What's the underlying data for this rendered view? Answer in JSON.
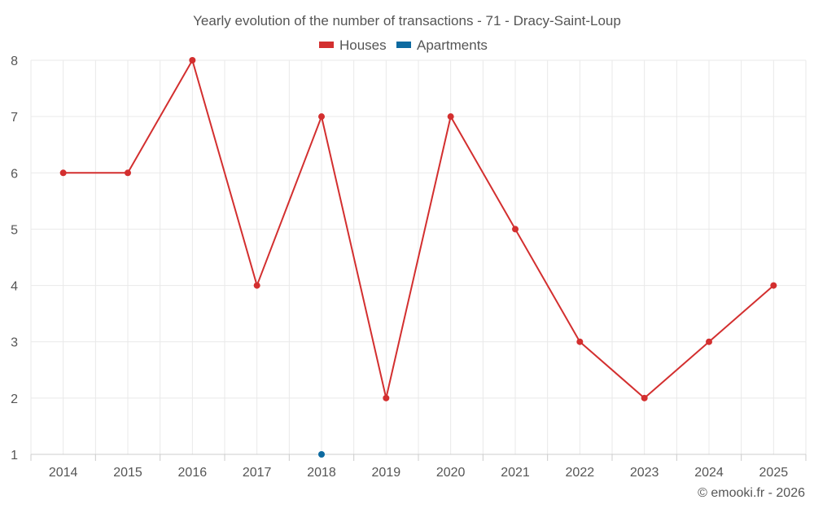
{
  "chart_data": {
    "type": "line",
    "title": "Yearly evolution of the number of transactions - 71 - Dracy-Saint-Loup",
    "categories": [
      "2014",
      "2015",
      "2016",
      "2017",
      "2018",
      "2019",
      "2020",
      "2021",
      "2022",
      "2023",
      "2024",
      "2025"
    ],
    "series": [
      {
        "name": "Houses",
        "color": "#d32f2f",
        "values": [
          6,
          6,
          8,
          4,
          7,
          2,
          7,
          5,
          3,
          2,
          3,
          4
        ]
      },
      {
        "name": "Apartments",
        "color": "#0d6aa0",
        "values": [
          null,
          null,
          null,
          null,
          1,
          null,
          null,
          null,
          null,
          null,
          null,
          null
        ]
      }
    ],
    "ylim": [
      1,
      8
    ],
    "yticks": [
      1,
      2,
      3,
      4,
      5,
      6,
      7,
      8
    ],
    "grid": true,
    "legend": "top-center",
    "xlabel": "",
    "ylabel": ""
  },
  "credit": "© emooki.fr - 2026"
}
